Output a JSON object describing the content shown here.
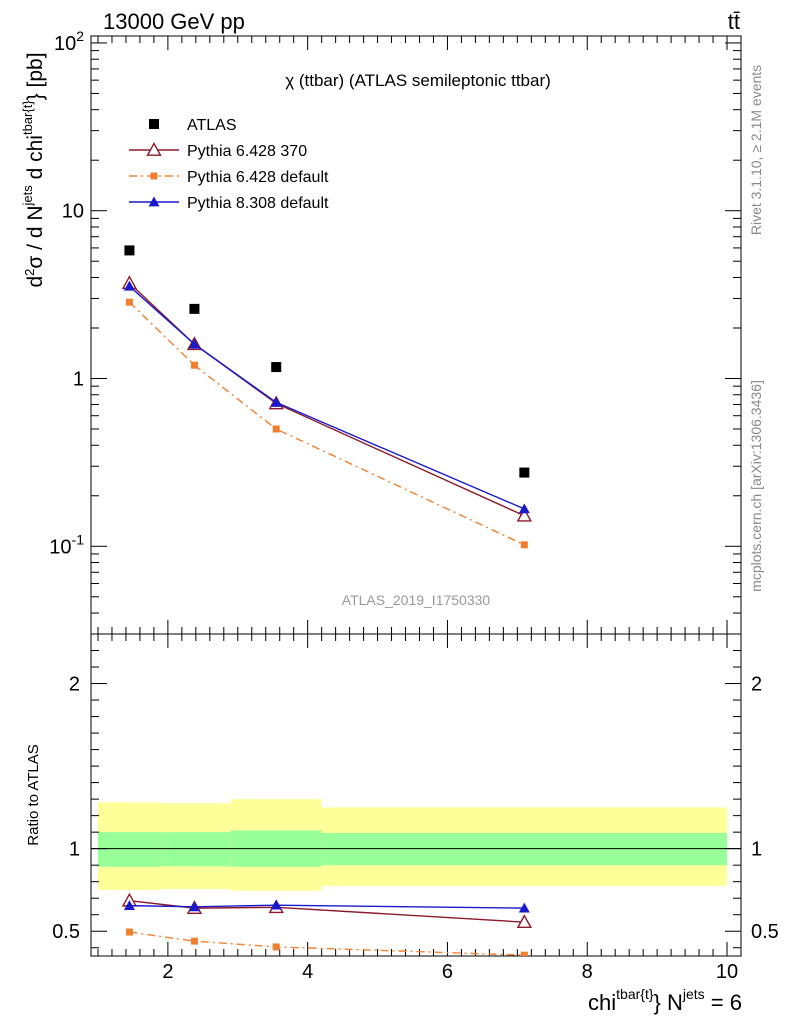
{
  "header": {
    "energy": "13000 GeV pp",
    "process": "tt̄"
  },
  "side": {
    "rivet": "Rivet 3.1.10, ≥ 2.1M events",
    "mcplots": "mcplots.cern.ch [arXiv:1306.3436]"
  },
  "chart_data": [
    {
      "type": "scatter",
      "title": "χ (ttbar) (ATLAS semileptonic ttbar)",
      "watermark": "ATLAS_2019_I1750330",
      "ylabel": "d²σ / d N^jets d chi^tbar{t} [pb]",
      "yscale": "log",
      "xlim": [
        0.9,
        10.2
      ],
      "ylim": [
        0.03,
        110
      ],
      "x": [
        1.45,
        2.38,
        3.55,
        7.1
      ],
      "y_tick_labels": [
        "10^-1",
        "1",
        "10",
        "10^2"
      ],
      "legend_position": "top-left",
      "series": [
        {
          "name": "ATLAS",
          "color": "#000000",
          "marker": "square",
          "values": [
            5.8,
            2.6,
            1.17,
            0.275
          ]
        },
        {
          "name": "Pythia 6.428 370",
          "color": "#8b1a2a",
          "marker": "open-triangle",
          "line": "solid",
          "values": [
            3.7,
            1.6,
            0.71,
            0.152
          ]
        },
        {
          "name": "Pythia 6.428 default",
          "color": "#f08030",
          "marker": "small-square",
          "line": "dashdot",
          "values": [
            2.85,
            1.2,
            0.5,
            0.102
          ]
        },
        {
          "name": "Pythia 8.308 default",
          "color": "#1a1acc",
          "marker": "filled-triangle",
          "line": "solid",
          "values": [
            3.55,
            1.6,
            0.72,
            0.167
          ]
        }
      ]
    },
    {
      "type": "line",
      "ylabel": "Ratio to ATLAS",
      "xlabel": "chi^tbar{t} N^jets = 6",
      "xlim": [
        0.9,
        10.2
      ],
      "ylim": [
        0.35,
        2.3
      ],
      "x_tick_labels": [
        "2",
        "4",
        "6",
        "8",
        "10"
      ],
      "y_tick_labels": [
        "0.5",
        "1",
        "2"
      ],
      "bands": [
        {
          "x0": 1.0,
          "x1": 1.9,
          "yellow": [
            0.75,
            1.28
          ],
          "green": [
            0.89,
            1.1
          ]
        },
        {
          "x0": 1.9,
          "x1": 2.9,
          "yellow": [
            0.755,
            1.275
          ],
          "green": [
            0.893,
            1.1
          ]
        },
        {
          "x0": 2.9,
          "x1": 4.2,
          "yellow": [
            0.745,
            1.3
          ],
          "green": [
            0.89,
            1.11
          ]
        },
        {
          "x0": 4.2,
          "x1": 10.0,
          "yellow": [
            0.775,
            1.25
          ],
          "green": [
            0.9,
            1.095
          ]
        }
      ],
      "series": [
        {
          "name": "Pythia 6.428 370",
          "color": "#8b1a2a",
          "values": [
            0.685,
            0.64,
            0.645,
            0.555
          ]
        },
        {
          "name": "Pythia 6.428 default",
          "color": "#f08030",
          "values": [
            0.495,
            0.44,
            0.405,
            0.355
          ]
        },
        {
          "name": "Pythia 8.308 default",
          "color": "#1a1acc",
          "values": [
            0.655,
            0.648,
            0.658,
            0.64
          ]
        }
      ]
    }
  ]
}
